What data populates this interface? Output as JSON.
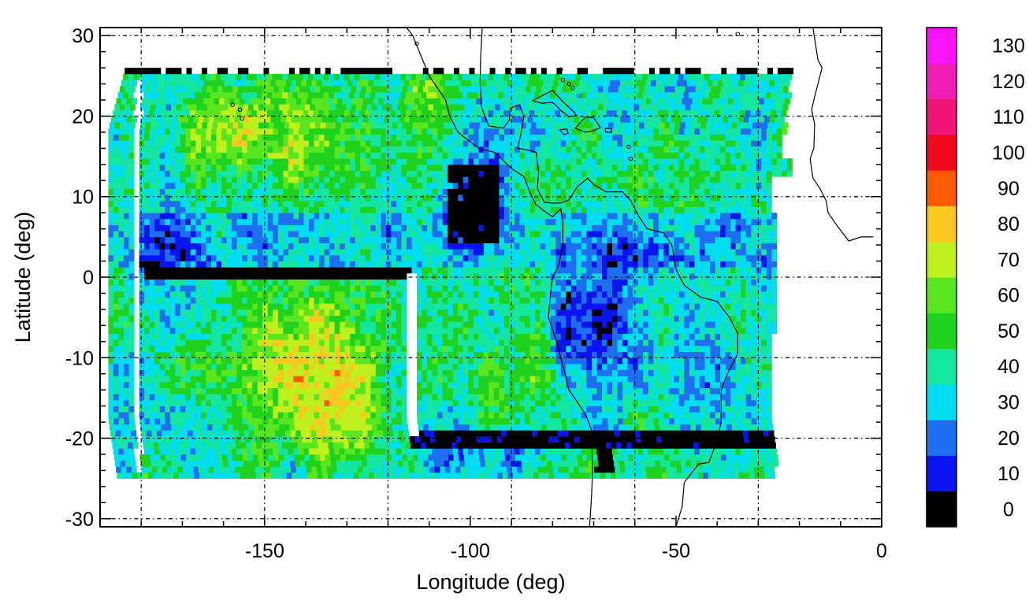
{
  "chart_data": {
    "type": "heatmap",
    "title": "",
    "xlabel": "Longitude (deg)",
    "ylabel": "Latitude (deg)",
    "xlim": [
      -190,
      0
    ],
    "ylim": [
      -31,
      31
    ],
    "x_ticks": [
      -150,
      -100,
      -50,
      0
    ],
    "x_tick_labels": [
      "-150",
      "-100",
      "-50",
      "0"
    ],
    "y_ticks": [
      30,
      20,
      10,
      0,
      -10,
      -20,
      -30
    ],
    "y_tick_labels": [
      "30",
      "20",
      "10",
      "0",
      "-10",
      "-20",
      "-30"
    ],
    "grid_x": [
      -180,
      -150,
      -120,
      -90,
      -60,
      -30
    ],
    "grid_y": [
      30,
      20,
      10,
      0,
      -10,
      -20,
      -30
    ],
    "grid": true,
    "data_extent": {
      "lon": [
        -188,
        -22
      ],
      "lat": [
        -25,
        26
      ]
    },
    "colorbar": {
      "levels": [
        0,
        10,
        20,
        30,
        40,
        50,
        60,
        70,
        80,
        90,
        100,
        110,
        120,
        130
      ],
      "labels": [
        "0",
        "10",
        "20",
        "30",
        "40",
        "50",
        "60",
        "70",
        "80",
        "90",
        "100",
        "110",
        "120",
        "130"
      ],
      "colors": [
        "#000000",
        "#0a14f0",
        "#1e6ef0",
        "#00dcf0",
        "#14e6a0",
        "#1ed21e",
        "#5ae61e",
        "#bef01e",
        "#fac81e",
        "#ff5a00",
        "#f00a1e",
        "#f01478",
        "#f01eb4",
        "#fa14fa"
      ]
    },
    "regions": [
      {
        "feature": "low values",
        "lon_range": [
          -110,
          -88
        ],
        "lat_range": [
          4,
          15
        ],
        "value_range": [
          0,
          10
        ]
      },
      {
        "feature": "low values",
        "lon_range": [
          -80,
          -58
        ],
        "lat_range": [
          -12,
          2
        ],
        "value_range": [
          0,
          20
        ]
      },
      {
        "feature": "low values",
        "lon_range": [
          -115,
          -26
        ],
        "lat_range": [
          -22,
          -19
        ],
        "value_range": [
          0,
          10
        ]
      },
      {
        "feature": "low values",
        "lon_range": [
          -180,
          -115
        ],
        "lat_range": [
          -1,
          1
        ],
        "value_range": [
          0,
          10
        ]
      },
      {
        "feature": "high values",
        "lon_range": [
          -165,
          -120
        ],
        "lat_range": [
          -25,
          -2
        ],
        "value_range": [
          60,
          120
        ]
      },
      {
        "feature": "high values",
        "lon_range": [
          -160,
          -120
        ],
        "lat_range": [
          10,
          25
        ],
        "value_range": [
          60,
          100
        ]
      },
      {
        "feature": "no data",
        "lon_range": [
          -116,
          -113
        ],
        "lat_range": [
          -20,
          0
        ]
      }
    ]
  }
}
